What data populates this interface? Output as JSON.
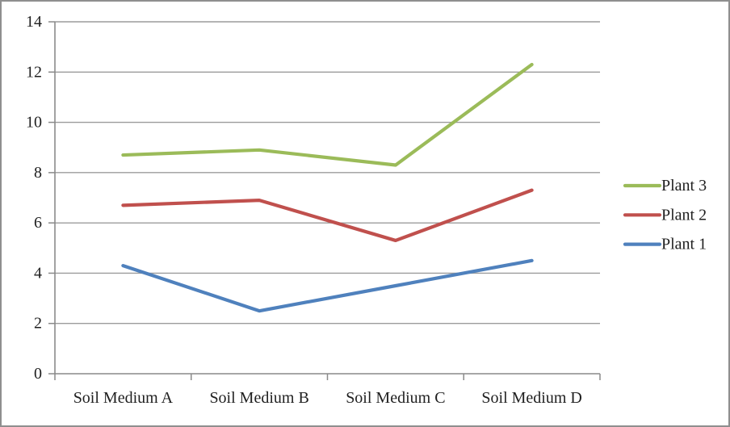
{
  "chart_data": {
    "type": "line",
    "title": "",
    "xlabel": "",
    "ylabel": "",
    "categories": [
      "Soil Medium A",
      "Soil Medium B",
      "Soil Medium C",
      "Soil Medium D"
    ],
    "series": [
      {
        "name": "Plant 1",
        "color": "#4F81BD",
        "values": [
          4.3,
          2.5,
          3.5,
          4.5
        ]
      },
      {
        "name": "Plant 2",
        "color": "#C0504D",
        "values": [
          6.7,
          6.9,
          5.3,
          7.3
        ]
      },
      {
        "name": "Plant 3",
        "color": "#9BBB59",
        "values": [
          8.7,
          8.9,
          8.3,
          12.3
        ]
      }
    ],
    "ylim": [
      0,
      14
    ],
    "ytick_step": 2,
    "ytick_labels": [
      "0",
      "2",
      "4",
      "6",
      "8",
      "10",
      "12",
      "14"
    ],
    "grid": true,
    "legend_position": "right",
    "legend_order": [
      "Plant 3",
      "Plant 2",
      "Plant 1"
    ]
  },
  "colors": {
    "grid": "#9C9C9C",
    "axis": "#8A8A8A",
    "text": "#1F1F1F",
    "frame_border": "#8F8F8F",
    "background": "#FFFFFF",
    "series_plant_1": "#4F81BD",
    "series_plant_2": "#C0504D",
    "series_plant_3": "#9BBB59"
  }
}
